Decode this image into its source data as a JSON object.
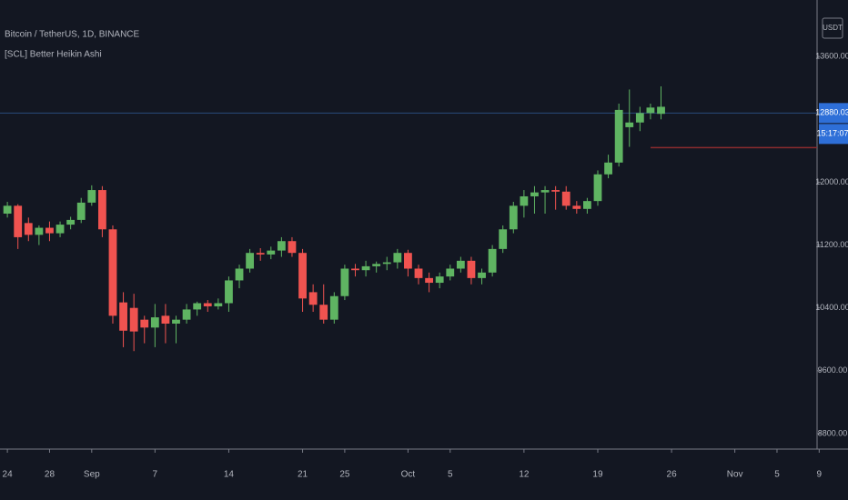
{
  "chart_data": {
    "type": "candlestick",
    "title": "Bitcoin / TetherUS, 1D, BINANCE",
    "subtitle": "[SCL] Better Heikin Ashi",
    "currency": "USDT",
    "up_color": "#5fb462",
    "down_color": "#f05350",
    "grid": false,
    "ylim": [
      8603,
      14319
    ],
    "yticks": [
      {
        "value": 13600,
        "label": "13600.00"
      },
      {
        "value": 12000,
        "label": "12000.00"
      },
      {
        "value": 11200,
        "label": "11200.00"
      },
      {
        "value": 10400,
        "label": "10400.00"
      },
      {
        "value": 9600,
        "label": "9600.00"
      },
      {
        "value": 8800,
        "label": "8800.00"
      }
    ],
    "xlim": [
      -0.7,
      76.8
    ],
    "xticks": [
      {
        "value": 0,
        "label": "24"
      },
      {
        "value": 4,
        "label": "28"
      },
      {
        "value": 8,
        "label": "Sep"
      },
      {
        "value": 14,
        "label": "7"
      },
      {
        "value": 21,
        "label": "14"
      },
      {
        "value": 28,
        "label": "21"
      },
      {
        "value": 32,
        "label": "25"
      },
      {
        "value": 38,
        "label": "Oct"
      },
      {
        "value": 42,
        "label": "5"
      },
      {
        "value": 49,
        "label": "12"
      },
      {
        "value": 56,
        "label": "19"
      },
      {
        "value": 63,
        "label": "26"
      },
      {
        "value": 69,
        "label": "Nov"
      },
      {
        "value": 73,
        "label": "5"
      },
      {
        "value": 77,
        "label": "9"
      }
    ],
    "last_price": 12880.03,
    "countdown": "15:17:07",
    "level_line": 12440,
    "ohlc": [
      [
        11600,
        11750,
        11550,
        11700
      ],
      [
        11700,
        11720,
        11150,
        11300
      ],
      [
        11480,
        11550,
        11250,
        11330
      ],
      [
        11330,
        11450,
        11200,
        11420
      ],
      [
        11420,
        11500,
        11250,
        11350
      ],
      [
        11350,
        11500,
        11300,
        11460
      ],
      [
        11460,
        11560,
        11400,
        11520
      ],
      [
        11520,
        11800,
        11480,
        11740
      ],
      [
        11740,
        11960,
        11700,
        11900
      ],
      [
        11900,
        11950,
        11300,
        11400
      ],
      [
        11400,
        11450,
        10200,
        10300
      ],
      [
        10470,
        10600,
        9900,
        10110
      ],
      [
        10400,
        10580,
        9850,
        10100
      ],
      [
        10250,
        10300,
        9950,
        10150
      ],
      [
        10150,
        10450,
        9900,
        10280
      ],
      [
        10300,
        10450,
        9950,
        10200
      ],
      [
        10200,
        10300,
        9950,
        10250
      ],
      [
        10250,
        10450,
        10200,
        10380
      ],
      [
        10380,
        10480,
        10300,
        10460
      ],
      [
        10460,
        10500,
        10350,
        10420
      ],
      [
        10420,
        10520,
        10380,
        10460
      ],
      [
        10460,
        10800,
        10350,
        10750
      ],
      [
        10750,
        10950,
        10650,
        10900
      ],
      [
        10900,
        11150,
        10850,
        11100
      ],
      [
        11100,
        11160,
        11000,
        11080
      ],
      [
        11080,
        11180,
        11020,
        11130
      ],
      [
        11130,
        11300,
        11050,
        11250
      ],
      [
        11250,
        11300,
        11050,
        11100
      ],
      [
        11100,
        11150,
        10350,
        10520
      ],
      [
        10600,
        10700,
        10350,
        10440
      ],
      [
        10440,
        10700,
        10200,
        10250
      ],
      [
        10250,
        10600,
        10200,
        10550
      ],
      [
        10550,
        10950,
        10500,
        10900
      ],
      [
        10900,
        10960,
        10800,
        10880
      ],
      [
        10880,
        11000,
        10800,
        10930
      ],
      [
        10930,
        10990,
        10850,
        10960
      ],
      [
        10960,
        11050,
        10880,
        10980
      ],
      [
        10980,
        11150,
        10900,
        11100
      ],
      [
        11100,
        11140,
        10800,
        10900
      ],
      [
        10900,
        10950,
        10700,
        10780
      ],
      [
        10780,
        10850,
        10600,
        10720
      ],
      [
        10720,
        10850,
        10650,
        10800
      ],
      [
        10800,
        10950,
        10750,
        10900
      ],
      [
        10900,
        11050,
        10850,
        11000
      ],
      [
        11000,
        11050,
        10700,
        10780
      ],
      [
        10780,
        10900,
        10700,
        10850
      ],
      [
        10850,
        11200,
        10800,
        11150
      ],
      [
        11150,
        11450,
        11100,
        11400
      ],
      [
        11400,
        11750,
        11350,
        11700
      ],
      [
        11700,
        11900,
        11550,
        11820
      ],
      [
        11820,
        11950,
        11600,
        11870
      ],
      [
        11870,
        11950,
        11600,
        11900
      ],
      [
        11900,
        11950,
        11650,
        11880
      ],
      [
        11880,
        11950,
        11650,
        11700
      ],
      [
        11700,
        11760,
        11600,
        11660
      ],
      [
        11660,
        11800,
        11600,
        11760
      ],
      [
        11760,
        12150,
        11700,
        12100
      ],
      [
        12100,
        12350,
        12050,
        12250
      ],
      [
        12250,
        13000,
        12200,
        12920
      ],
      [
        12700,
        13180,
        12450,
        12760
      ],
      [
        12760,
        12960,
        12650,
        12880
      ],
      [
        12880,
        13000,
        12800,
        12950
      ],
      [
        12870,
        13220,
        12800,
        12960
      ]
    ]
  }
}
